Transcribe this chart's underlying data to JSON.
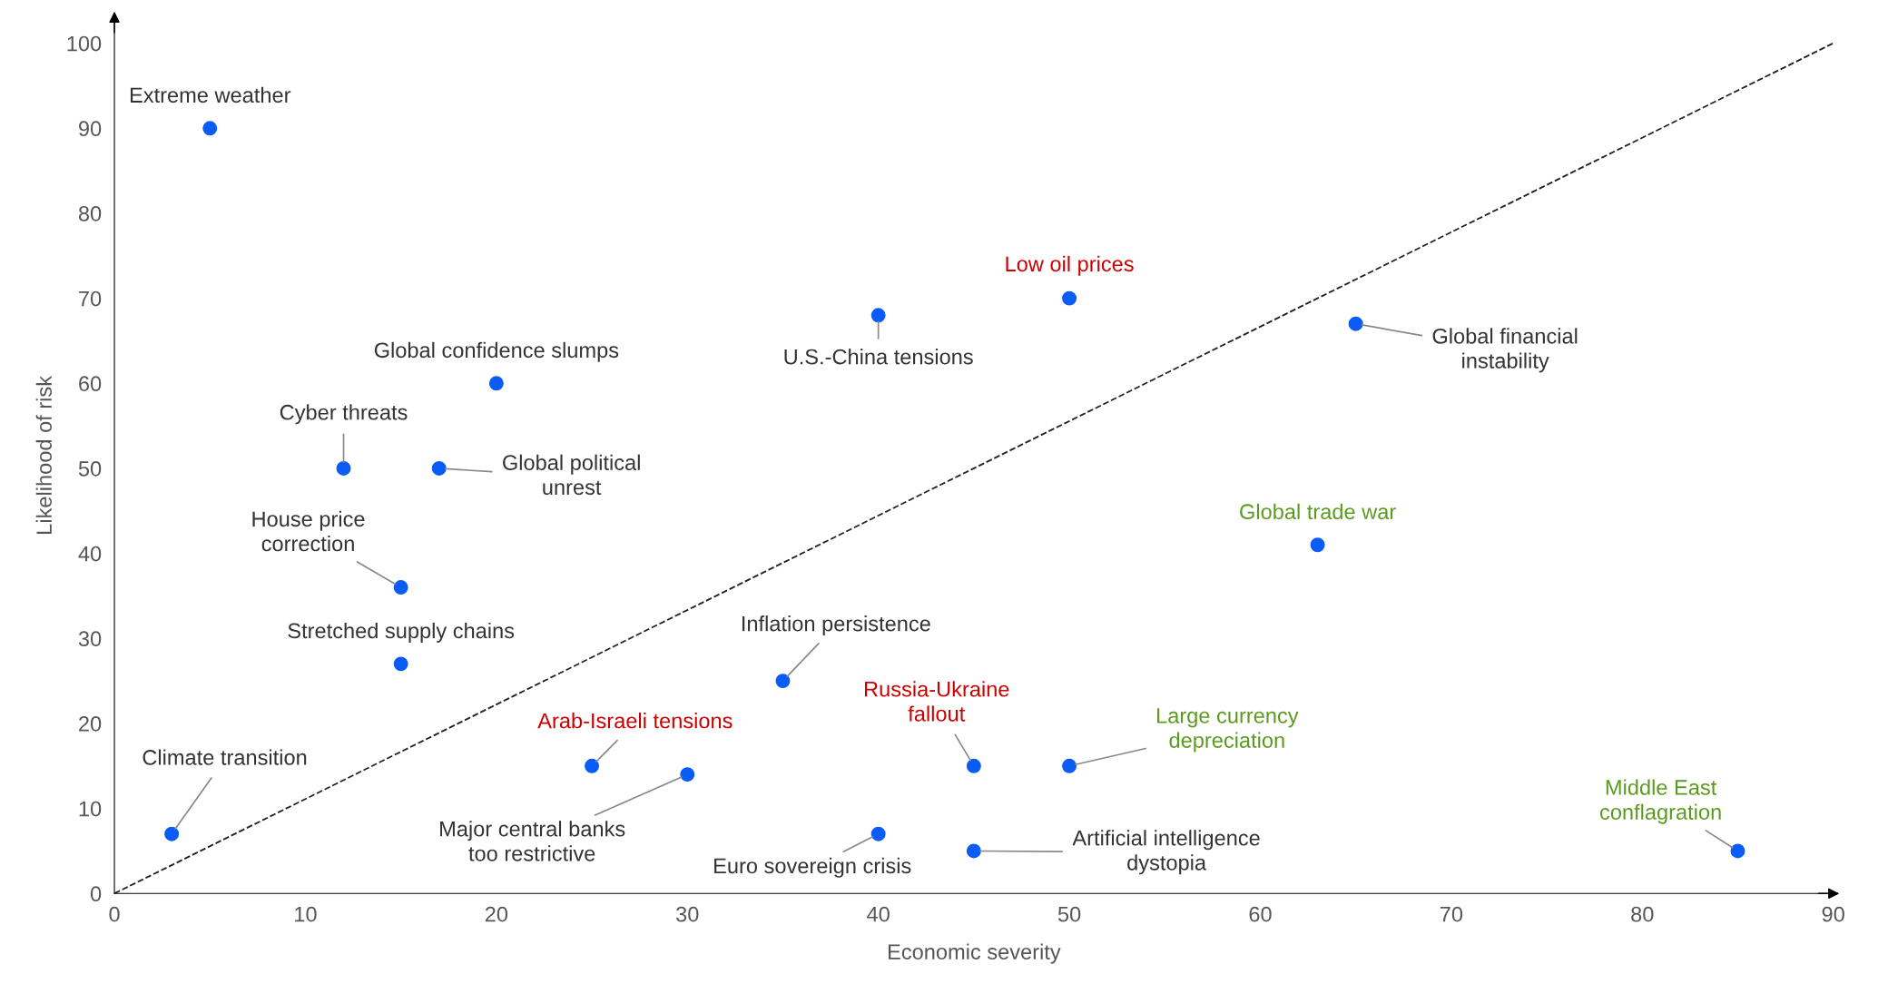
{
  "chart_data": {
    "type": "scatter",
    "xlabel": "Economic severity",
    "ylabel": "Likelihood of risk",
    "xlim": [
      0,
      90
    ],
    "ylim": [
      0,
      103
    ],
    "xticks": [
      0,
      10,
      20,
      30,
      40,
      50,
      60,
      70,
      80,
      90
    ],
    "yticks": [
      0,
      10,
      20,
      30,
      40,
      50,
      60,
      70,
      80,
      90,
      100
    ],
    "grid": false,
    "legend": false,
    "series": [
      {
        "color": "#0a5cf5",
        "marker": "circle",
        "x": [
          5,
          20,
          12,
          17,
          15,
          15,
          3,
          25,
          30,
          35,
          40,
          40,
          50,
          45,
          45,
          50,
          63,
          65,
          85
        ],
        "values": [
          90,
          60,
          50,
          50,
          36,
          27,
          7,
          15,
          14,
          25,
          7,
          68,
          70,
          15,
          5,
          15,
          41,
          67,
          5
        ]
      },
      {
        "type": "line",
        "color": "#222222",
        "line_style": "dashed",
        "marker": "none",
        "x": [
          0,
          90
        ],
        "values": [
          0,
          100
        ]
      }
    ],
    "annotations": [
      {
        "text": "Extreme weather",
        "x": 5,
        "y": 90
      },
      {
        "text": "Global confidence slumps",
        "x": 20,
        "y": 60
      },
      {
        "text": "Cyber threats",
        "x": 12,
        "y": 50
      },
      {
        "text": "Global political\nunrest",
        "x": 17,
        "y": 50
      },
      {
        "text": "House price\ncorrection",
        "x": 15,
        "y": 36
      },
      {
        "text": "Stretched supply chains",
        "x": 15,
        "y": 27
      },
      {
        "text": "Climate transition",
        "x": 3,
        "y": 7
      },
      {
        "text": "Arab-Israeli tensions",
        "x": 25,
        "y": 15
      },
      {
        "text": "Major central banks\ntoo restrictive",
        "x": 30,
        "y": 14
      },
      {
        "text": "Inflation persistence",
        "x": 35,
        "y": 25
      },
      {
        "text": "Euro sovereign crisis",
        "x": 40,
        "y": 7
      },
      {
        "text": "U.S.-China tensions",
        "x": 40,
        "y": 68
      },
      {
        "text": "Low oil prices",
        "x": 50,
        "y": 70
      },
      {
        "text": "Russia-Ukraine\nfallout",
        "x": 45,
        "y": 15
      },
      {
        "text": "Artificial intelligence\ndystopia",
        "x": 45,
        "y": 5
      },
      {
        "text": "Large currency\ndepreciation",
        "x": 50,
        "y": 15
      },
      {
        "text": "Global trade war",
        "x": 63,
        "y": 41
      },
      {
        "text": "Global financial\ninstability",
        "x": 65,
        "y": 67
      },
      {
        "text": "Middle East\nconflagration",
        "x": 85,
        "y": 5
      }
    ]
  }
}
